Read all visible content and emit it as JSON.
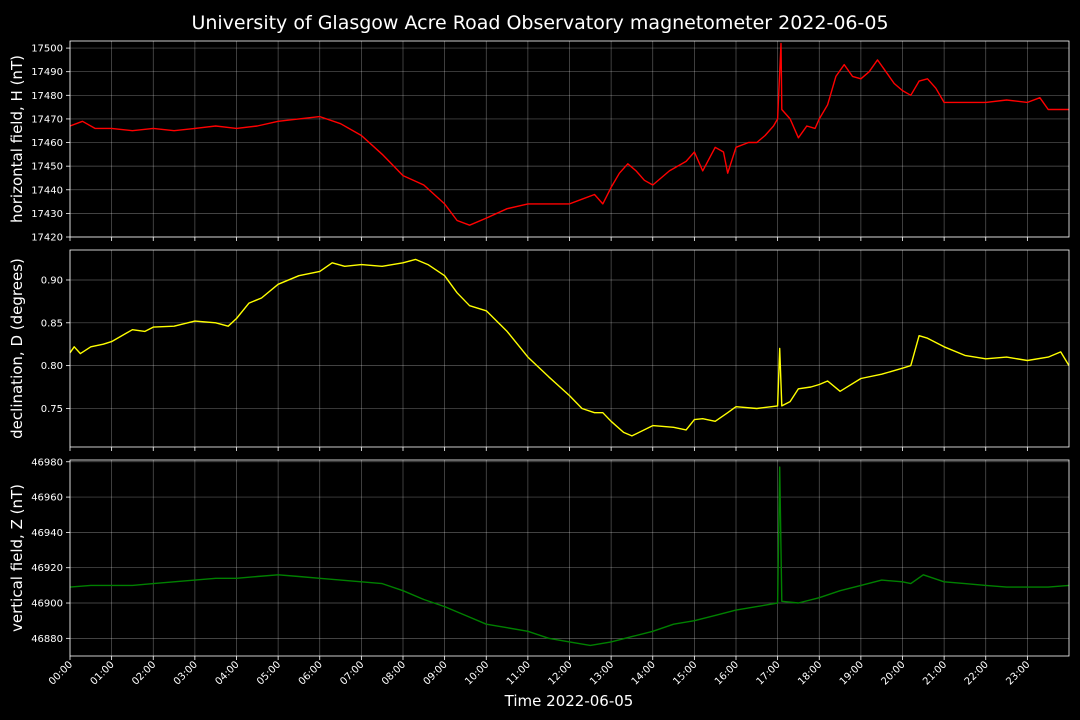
{
  "title": "University of Glasgow Acre Road Observatory magnetometer 2022-06-05",
  "chart_data": {
    "type": "line",
    "xlabel": "Time 2022-06-05",
    "x_ticks": [
      "00:00",
      "01:00",
      "02:00",
      "03:00",
      "04:00",
      "05:00",
      "06:00",
      "07:00",
      "08:00",
      "09:00",
      "10:00",
      "11:00",
      "12:00",
      "13:00",
      "14:00",
      "15:00",
      "16:00",
      "17:00",
      "18:00",
      "19:00",
      "20:00",
      "21:00",
      "22:00",
      "23:00"
    ],
    "x_unit": "hour",
    "xlim": [
      0,
      24
    ],
    "grid": true,
    "panels": [
      {
        "ylabel": "horizontal field, H (nT)",
        "color": "#ff0000",
        "ylim": [
          17420,
          17503
        ],
        "yticks": [
          17420,
          17430,
          17440,
          17450,
          17460,
          17470,
          17480,
          17490,
          17500
        ],
        "x": [
          0,
          0.3,
          0.6,
          1.0,
          1.5,
          2.0,
          2.5,
          3.0,
          3.5,
          4.0,
          4.5,
          5.0,
          5.5,
          6.0,
          6.5,
          7.0,
          7.5,
          8.0,
          8.5,
          9.0,
          9.3,
          9.6,
          10.0,
          10.5,
          11.0,
          11.5,
          12.0,
          12.3,
          12.6,
          12.8,
          13.0,
          13.2,
          13.4,
          13.6,
          13.8,
          14.0,
          14.4,
          14.8,
          15.0,
          15.2,
          15.5,
          15.7,
          15.8,
          16.0,
          16.3,
          16.5,
          16.7,
          16.9,
          17.0,
          17.08,
          17.1,
          17.3,
          17.5,
          17.7,
          17.9,
          18.0,
          18.2,
          18.4,
          18.6,
          18.8,
          19.0,
          19.2,
          19.4,
          19.6,
          19.8,
          20.0,
          20.2,
          20.4,
          20.6,
          20.8,
          21.0,
          21.5,
          22.0,
          22.5,
          23.0,
          23.3,
          23.5,
          23.8,
          24.0
        ],
        "values": [
          17467,
          17469,
          17466,
          17466,
          17465,
          17466,
          17465,
          17466,
          17467,
          17466,
          17467,
          17469,
          17470,
          17471,
          17468,
          17463,
          17455,
          17446,
          17442,
          17434,
          17427,
          17425,
          17428,
          17432,
          17434,
          17434,
          17434,
          17436,
          17438,
          17434,
          17441,
          17447,
          17451,
          17448,
          17444,
          17442,
          17448,
          17452,
          17456,
          17448,
          17458,
          17456,
          17447,
          17458,
          17460,
          17460,
          17463,
          17467,
          17470,
          17502,
          17474,
          17470,
          17462,
          17467,
          17466,
          17470,
          17476,
          17488,
          17493,
          17488,
          17487,
          17490,
          17495,
          17490,
          17485,
          17482,
          17480,
          17486,
          17487,
          17483,
          17477,
          17477,
          17477,
          17478,
          17477,
          17479,
          17474,
          17474,
          17474
        ]
      },
      {
        "ylabel": "declination, D (degrees)",
        "color": "#ffff00",
        "ylim": [
          0.705,
          0.935
        ],
        "yticks": [
          0.75,
          0.8,
          0.85,
          0.9
        ],
        "x": [
          0,
          0.1,
          0.25,
          0.5,
          0.8,
          1.0,
          1.5,
          1.8,
          2.0,
          2.5,
          3.0,
          3.5,
          3.8,
          4.0,
          4.3,
          4.6,
          5.0,
          5.5,
          6.0,
          6.3,
          6.6,
          7.0,
          7.5,
          8.0,
          8.3,
          8.6,
          9.0,
          9.3,
          9.6,
          10.0,
          10.5,
          11.0,
          11.5,
          12.0,
          12.3,
          12.6,
          12.8,
          13.0,
          13.3,
          13.5,
          14.0,
          14.5,
          14.8,
          15.0,
          15.2,
          15.5,
          15.8,
          16.0,
          16.5,
          17.0,
          17.05,
          17.1,
          17.3,
          17.5,
          17.8,
          18.0,
          18.2,
          18.5,
          19.0,
          19.5,
          20.0,
          20.2,
          20.4,
          20.6,
          21.0,
          21.5,
          22.0,
          22.5,
          23.0,
          23.5,
          23.8,
          24.0
        ],
        "values": [
          0.815,
          0.822,
          0.814,
          0.822,
          0.825,
          0.828,
          0.842,
          0.84,
          0.845,
          0.846,
          0.852,
          0.85,
          0.846,
          0.855,
          0.873,
          0.879,
          0.895,
          0.905,
          0.91,
          0.92,
          0.916,
          0.918,
          0.916,
          0.92,
          0.924,
          0.918,
          0.905,
          0.885,
          0.87,
          0.864,
          0.84,
          0.81,
          0.787,
          0.765,
          0.75,
          0.745,
          0.745,
          0.735,
          0.722,
          0.718,
          0.73,
          0.728,
          0.725,
          0.737,
          0.738,
          0.735,
          0.745,
          0.752,
          0.75,
          0.753,
          0.82,
          0.753,
          0.758,
          0.773,
          0.775,
          0.778,
          0.782,
          0.77,
          0.785,
          0.79,
          0.797,
          0.8,
          0.835,
          0.832,
          0.822,
          0.812,
          0.808,
          0.81,
          0.806,
          0.81,
          0.816,
          0.8
        ]
      },
      {
        "ylabel": "vertical field, Z (nT)",
        "color": "#008000",
        "ylim": [
          46870,
          46981
        ],
        "yticks": [
          46880,
          46900,
          46920,
          46940,
          46960,
          46980
        ],
        "x": [
          0,
          0.5,
          1.0,
          1.5,
          2.0,
          2.5,
          3.0,
          3.5,
          4.0,
          4.5,
          5.0,
          5.5,
          6.0,
          6.5,
          7.0,
          7.5,
          8.0,
          8.5,
          9.0,
          9.5,
          10.0,
          10.5,
          11.0,
          11.5,
          12.0,
          12.5,
          13.0,
          13.5,
          14.0,
          14.5,
          15.0,
          15.5,
          16.0,
          16.5,
          17.0,
          17.05,
          17.1,
          17.5,
          18.0,
          18.5,
          19.0,
          19.5,
          20.0,
          20.2,
          20.5,
          21.0,
          21.5,
          22.0,
          22.5,
          23.0,
          23.5,
          24.0
        ],
        "values": [
          46909,
          46910,
          46910,
          46910,
          46911,
          46912,
          46913,
          46914,
          46914,
          46915,
          46916,
          46915,
          46914,
          46913,
          46912,
          46911,
          46907,
          46902,
          46898,
          46893,
          46888,
          46886,
          46884,
          46880,
          46878,
          46876,
          46878,
          46881,
          46884,
          46888,
          46890,
          46893,
          46896,
          46898,
          46900,
          46977,
          46901,
          46900,
          46903,
          46907,
          46910,
          46913,
          46912,
          46911,
          46916,
          46912,
          46911,
          46910,
          46909,
          46909,
          46909,
          46910
        ]
      }
    ]
  }
}
